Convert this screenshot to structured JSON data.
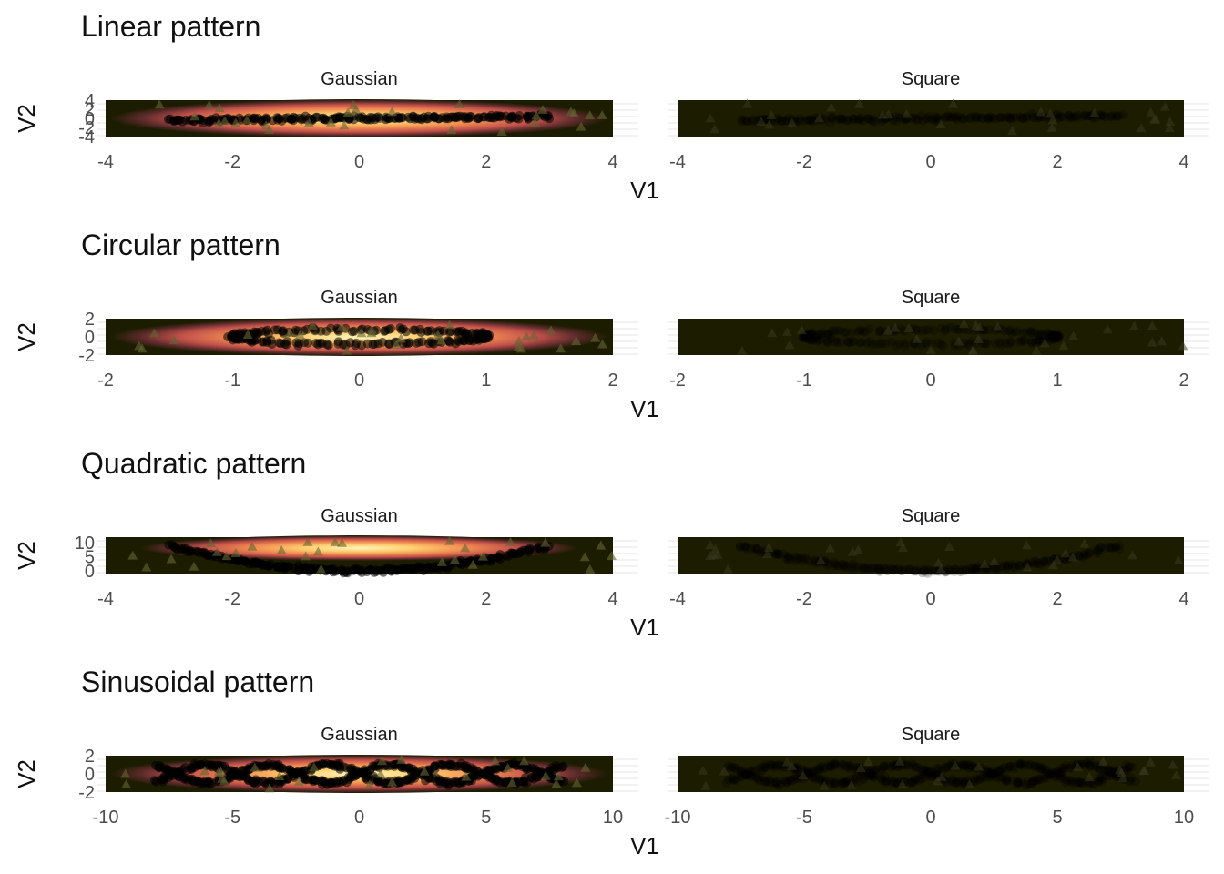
{
  "chart_data": [
    {
      "type": "heatmap",
      "title": "Linear pattern",
      "xlabel": "V1",
      "ylabel": "V2",
      "pattern": "linear",
      "panels": [
        "Gaussian",
        "Square"
      ],
      "xlim": [
        -4,
        4
      ],
      "ylim": [
        -4,
        4
      ],
      "x_ticks": [
        "-4",
        "-2",
        "0",
        "2",
        "4"
      ],
      "x_tick_values": [
        -4,
        -2,
        0,
        2,
        4
      ],
      "y_ticks": [
        "-4",
        "-2",
        "0",
        "2",
        "4"
      ],
      "y_tick_values": [
        -4,
        -2,
        0,
        2,
        4
      ],
      "density_colors": [
        "#1c1c00",
        "#5a2a2a",
        "#c0504a",
        "#f08a50",
        "#ffd070",
        "#fff4c0"
      ]
    },
    {
      "type": "heatmap",
      "title": "Circular pattern",
      "xlabel": "V1",
      "ylabel": "V2",
      "pattern": "circular",
      "panels": [
        "Gaussian",
        "Square"
      ],
      "xlim": [
        -2,
        2
      ],
      "ylim": [
        -2,
        2
      ],
      "x_ticks": [
        "-2",
        "-1",
        "0",
        "1",
        "2"
      ],
      "x_tick_values": [
        -2,
        -1,
        0,
        1,
        2
      ],
      "y_ticks": [
        "-2",
        "0",
        "2"
      ],
      "y_tick_values": [
        -2,
        0,
        2
      ],
      "density_colors": [
        "#1c1c00",
        "#5a2a2a",
        "#c0504a",
        "#f08a50",
        "#ffd070",
        "#fff4c0"
      ]
    },
    {
      "type": "heatmap",
      "title": "Quadratic pattern",
      "xlabel": "V1",
      "ylabel": "V2",
      "pattern": "quadratic",
      "panels": [
        "Gaussian",
        "Square"
      ],
      "xlim": [
        -4,
        4
      ],
      "ylim": [
        -1,
        12
      ],
      "x_ticks": [
        "-4",
        "-2",
        "0",
        "2",
        "4"
      ],
      "x_tick_values": [
        -4,
        -2,
        0,
        2,
        4
      ],
      "y_ticks": [
        "0",
        "5",
        "10"
      ],
      "y_tick_values": [
        0,
        5,
        10
      ],
      "density_colors": [
        "#1c1c00",
        "#5a2a2a",
        "#c0504a",
        "#f08a50",
        "#ffd070",
        "#fff4c0"
      ]
    },
    {
      "type": "heatmap",
      "title": "Sinusoidal pattern",
      "xlabel": "V1",
      "ylabel": "V2",
      "pattern": "sinusoidal",
      "panels": [
        "Gaussian",
        "Square"
      ],
      "xlim": [
        -10,
        10
      ],
      "ylim": [
        -2,
        2
      ],
      "x_ticks": [
        "-10",
        "-5",
        "0",
        "5",
        "10"
      ],
      "x_tick_values": [
        -10,
        -5,
        0,
        5,
        10
      ],
      "y_ticks": [
        "-2",
        "0",
        "2"
      ],
      "y_tick_values": [
        -2,
        0,
        2
      ],
      "density_colors": [
        "#1c1c00",
        "#5a2a2a",
        "#c0504a",
        "#f08a50",
        "#ffd070",
        "#fff4c0"
      ]
    }
  ]
}
